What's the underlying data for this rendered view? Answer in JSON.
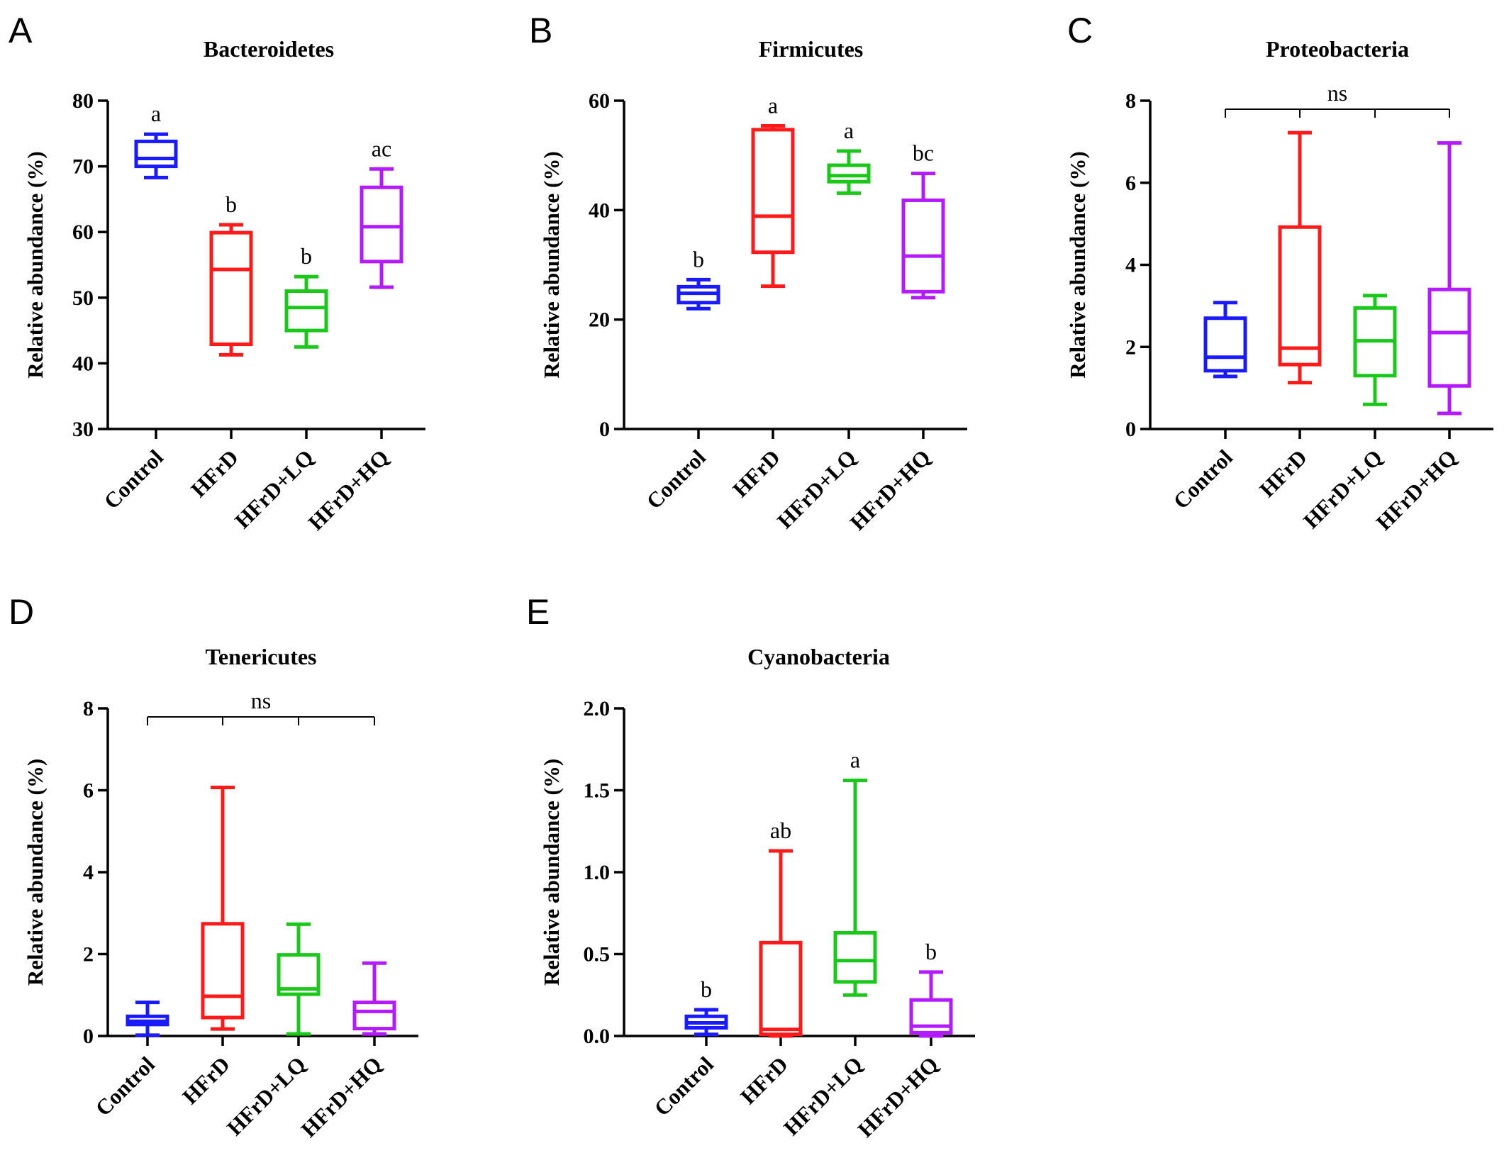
{
  "chart_data": [
    {
      "type": "box",
      "panel_label": "A",
      "title": "Bacteroidetes",
      "ylabel": "Relative abundance (%)",
      "xlabel": "",
      "ylim": [
        30,
        80
      ],
      "yticks": [
        30,
        40,
        50,
        60,
        70,
        80
      ],
      "categories": [
        "Control",
        "HFrD",
        "HFrD+LQ",
        "HFrD+HQ"
      ],
      "boxes": [
        {
          "min": 68.3,
          "q1": 70.0,
          "median": 71.2,
          "q3": 73.8,
          "max": 74.9
        },
        {
          "min": 41.3,
          "q1": 42.9,
          "median": 54.3,
          "q3": 59.9,
          "max": 61.1
        },
        {
          "min": 42.5,
          "q1": 45.0,
          "median": 48.5,
          "q3": 51.0,
          "max": 53.2
        },
        {
          "min": 51.6,
          "q1": 55.5,
          "median": 60.8,
          "q3": 66.8,
          "max": 69.6
        }
      ],
      "significance": [
        "a",
        "b",
        "b",
        "ac"
      ],
      "bracket_label": ""
    },
    {
      "type": "box",
      "panel_label": "B",
      "title": "Firmicutes",
      "ylabel": "Relative abundance (%)",
      "xlabel": "",
      "ylim": [
        0,
        60
      ],
      "yticks": [
        0,
        20,
        40,
        60
      ],
      "categories": [
        "Control",
        "HFrD",
        "HFrD+LQ",
        "HFrD+HQ"
      ],
      "boxes": [
        {
          "min": 22.0,
          "q1": 23.1,
          "median": 24.8,
          "q3": 26.0,
          "max": 27.3
        },
        {
          "min": 26.1,
          "q1": 32.3,
          "median": 38.9,
          "q3": 54.7,
          "max": 55.4
        },
        {
          "min": 43.1,
          "q1": 45.2,
          "median": 46.3,
          "q3": 48.2,
          "max": 50.8
        },
        {
          "min": 24.0,
          "q1": 25.1,
          "median": 31.6,
          "q3": 41.8,
          "max": 46.7
        }
      ],
      "significance": [
        "b",
        "a",
        "a",
        "bc"
      ],
      "bracket_label": ""
    },
    {
      "type": "box",
      "panel_label": "C",
      "title": "Proteobacteria",
      "ylabel": "Relative abundance (%)",
      "xlabel": "",
      "ylim": [
        0,
        8
      ],
      "yticks": [
        0,
        2,
        4,
        6,
        8
      ],
      "categories": [
        "Control",
        "HFrD",
        "HFrD+LQ",
        "HFrD+HQ"
      ],
      "boxes": [
        {
          "min": 1.28,
          "q1": 1.42,
          "median": 1.75,
          "q3": 2.7,
          "max": 3.08
        },
        {
          "min": 1.13,
          "q1": 1.57,
          "median": 1.97,
          "q3": 4.92,
          "max": 7.22
        },
        {
          "min": 0.6,
          "q1": 1.3,
          "median": 2.15,
          "q3": 2.95,
          "max": 3.25
        },
        {
          "min": 0.38,
          "q1": 1.05,
          "median": 2.35,
          "q3": 3.4,
          "max": 6.97
        }
      ],
      "significance": [
        "",
        "",
        "",
        ""
      ],
      "bracket_label": "ns"
    },
    {
      "type": "box",
      "panel_label": "D",
      "title": "Tenericutes",
      "ylabel": "Relative abundance (%)",
      "xlabel": "",
      "ylim": [
        0,
        8
      ],
      "yticks": [
        0,
        2,
        4,
        6,
        8
      ],
      "categories": [
        "Control",
        "HFrD",
        "HFrD+LQ",
        "HFrD+HQ"
      ],
      "boxes": [
        {
          "min": 0.02,
          "q1": 0.28,
          "median": 0.36,
          "q3": 0.48,
          "max": 0.82
        },
        {
          "min": 0.17,
          "q1": 0.45,
          "median": 0.97,
          "q3": 2.74,
          "max": 6.07
        },
        {
          "min": 0.05,
          "q1": 1.02,
          "median": 1.15,
          "q3": 1.98,
          "max": 2.73
        },
        {
          "min": 0.05,
          "q1": 0.18,
          "median": 0.6,
          "q3": 0.82,
          "max": 1.78
        }
      ],
      "significance": [
        "",
        "",
        "",
        ""
      ],
      "bracket_label": "ns"
    },
    {
      "type": "box",
      "panel_label": "E",
      "title": "Cyanobacteria",
      "ylabel": "Relative abundance (%)",
      "xlabel": "",
      "ylim": [
        0,
        2.0
      ],
      "yticks": [
        0.0,
        0.5,
        1.0,
        1.5,
        2.0
      ],
      "categories": [
        "Control",
        "HFrD",
        "HFrD+LQ",
        "HFrD+HQ"
      ],
      "boxes": [
        {
          "min": 0.01,
          "q1": 0.05,
          "median": 0.08,
          "q3": 0.12,
          "max": 0.16
        },
        {
          "min": 0.0,
          "q1": 0.01,
          "median": 0.04,
          "q3": 0.57,
          "max": 1.13
        },
        {
          "min": 0.25,
          "q1": 0.33,
          "median": 0.46,
          "q3": 0.63,
          "max": 1.56
        },
        {
          "min": 0.0,
          "q1": 0.02,
          "median": 0.06,
          "q3": 0.22,
          "max": 0.39
        }
      ],
      "significance": [
        "b",
        "ab",
        "a",
        "b"
      ],
      "bracket_label": ""
    }
  ],
  "colors": {
    "groups": [
      "#1a1aff",
      "#ff1a1a",
      "#1ac81a",
      "#b31aff"
    ],
    "axis": "#000000"
  }
}
